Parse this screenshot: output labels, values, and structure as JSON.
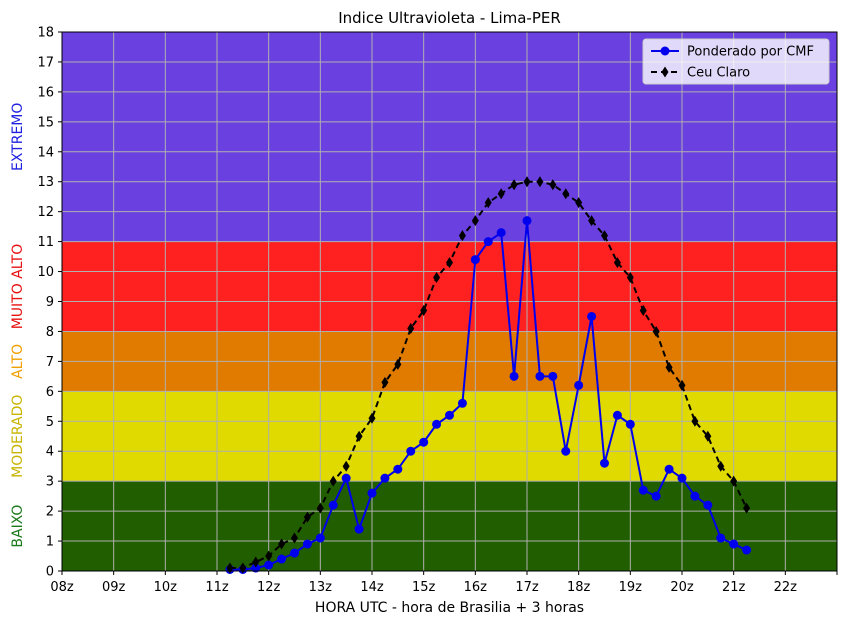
{
  "chart_data": {
    "type": "line",
    "title": "Indice Ultravioleta - Lima-PER",
    "xlabel": "HORA UTC - hora de Brasilia + 3 horas",
    "ylabel": "",
    "xlim": [
      8,
      23
    ],
    "ylim": [
      0,
      18
    ],
    "x_ticks": [
      {
        "value": 8,
        "label": "08z"
      },
      {
        "value": 9,
        "label": "09z"
      },
      {
        "value": 10,
        "label": "10z"
      },
      {
        "value": 11,
        "label": "11z"
      },
      {
        "value": 12,
        "label": "12z"
      },
      {
        "value": 13,
        "label": "13z"
      },
      {
        "value": 14,
        "label": "14z"
      },
      {
        "value": 15,
        "label": "15z"
      },
      {
        "value": 16,
        "label": "16z"
      },
      {
        "value": 17,
        "label": "17z"
      },
      {
        "value": 18,
        "label": "18z"
      },
      {
        "value": 19,
        "label": "19z"
      },
      {
        "value": 20,
        "label": "20z"
      },
      {
        "value": 21,
        "label": "21z"
      },
      {
        "value": 22,
        "label": "22z"
      },
      {
        "value": 23,
        "label": ""
      }
    ],
    "y_ticks": [
      0,
      1,
      2,
      3,
      4,
      5,
      6,
      7,
      8,
      9,
      10,
      11,
      12,
      13,
      14,
      15,
      16,
      17,
      18
    ],
    "grid": true,
    "legend_position": "top-right",
    "bands": [
      {
        "label": "BAIXO",
        "from": 0,
        "to": 3,
        "fill": "#215e00",
        "label_color": "#1a7a1a"
      },
      {
        "label": "MODERADO",
        "from": 3,
        "to": 6,
        "fill": "#e0da00",
        "label_color": "#c8b400"
      },
      {
        "label": "ALTO",
        "from": 6,
        "to": 8,
        "fill": "#e07b00",
        "label_color": "#f0a000"
      },
      {
        "label": "MUITO ALTO",
        "from": 8,
        "to": 11,
        "fill": "#ff2020",
        "label_color": "#e81010"
      },
      {
        "label": "EXTREMO",
        "from": 11,
        "to": 18,
        "fill": "#6a40e0",
        "label_color": "#2020e0"
      }
    ],
    "series": [
      {
        "name": "Ponderado por CMF",
        "color": "#0000ee",
        "style": "solid",
        "marker": "circle",
        "x": [
          11.25,
          11.5,
          11.75,
          12.0,
          12.25,
          12.5,
          12.75,
          13.0,
          13.25,
          13.5,
          13.75,
          14.0,
          14.25,
          14.5,
          14.75,
          15.0,
          15.25,
          15.5,
          15.75,
          16.0,
          16.25,
          16.5,
          16.75,
          17.0,
          17.25,
          17.5,
          17.75,
          18.0,
          18.25,
          18.5,
          18.75,
          19.0,
          19.25,
          19.5,
          19.75,
          20.0,
          20.25,
          20.5,
          20.75,
          21.0,
          21.25
        ],
        "y": [
          0.05,
          0.05,
          0.1,
          0.2,
          0.4,
          0.6,
          0.9,
          1.1,
          2.2,
          3.1,
          1.4,
          2.6,
          3.1,
          3.4,
          4.0,
          4.3,
          4.9,
          5.2,
          5.6,
          10.4,
          11.0,
          11.3,
          6.5,
          11.7,
          6.5,
          6.5,
          4.0,
          6.2,
          8.5,
          3.6,
          5.2,
          4.9,
          2.7,
          2.5,
          3.4,
          3.1,
          2.5,
          2.2,
          1.1,
          0.9,
          0.7
        ]
      },
      {
        "name": "Ceu Claro",
        "color": "#000000",
        "style": "dashed",
        "marker": "diamond",
        "x": [
          11.25,
          11.5,
          11.75,
          12.0,
          12.25,
          12.5,
          12.75,
          13.0,
          13.25,
          13.5,
          13.75,
          14.0,
          14.25,
          14.5,
          14.75,
          15.0,
          15.25,
          15.5,
          15.75,
          16.0,
          16.25,
          16.5,
          16.75,
          17.0,
          17.25,
          17.5,
          17.75,
          18.0,
          18.25,
          18.5,
          18.75,
          19.0,
          19.25,
          19.5,
          19.75,
          20.0,
          20.25,
          20.5,
          20.75,
          21.0,
          21.25
        ],
        "y": [
          0.1,
          0.1,
          0.3,
          0.5,
          0.9,
          1.1,
          1.8,
          2.1,
          3.0,
          3.5,
          4.5,
          5.1,
          6.3,
          6.9,
          8.1,
          8.7,
          9.8,
          10.3,
          11.2,
          11.7,
          12.3,
          12.6,
          12.9,
          13.0,
          13.0,
          12.9,
          12.6,
          12.3,
          11.7,
          11.2,
          10.3,
          9.8,
          8.7,
          8.0,
          6.8,
          6.2,
          5.0,
          4.5,
          3.5,
          3.0,
          2.1
        ]
      }
    ]
  }
}
